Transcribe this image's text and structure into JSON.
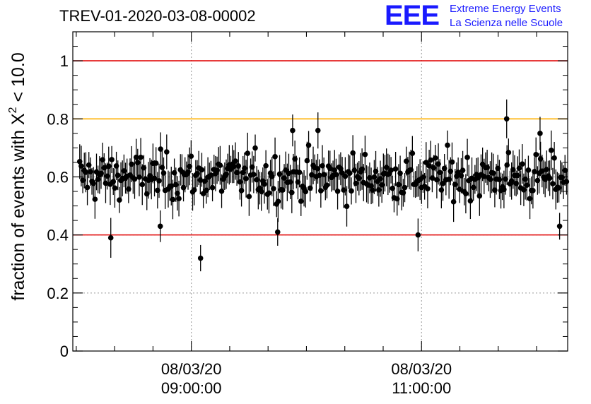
{
  "title": "TREV-01-2020-03-08-00002",
  "logo": {
    "mark": "EEE",
    "line1": "Extreme Energy Events",
    "line2": "La Scienza nelle Scuole"
  },
  "colors": {
    "threshold_low": "#e00000",
    "threshold_high": "#e00000",
    "threshold_mid": "#ffb000",
    "points": "#000000",
    "logo": "#1a1aff"
  },
  "chart_data": {
    "type": "scatter",
    "title": "TREV-01-2020-03-08-00002",
    "ylabel_main": "fraction of events with ",
    "ylabel_chi": "X",
    "ylabel_sup": "2",
    "ylabel_tail": " < 10.0",
    "ylim": [
      0,
      1.1
    ],
    "yticks": [
      0,
      0.2,
      0.4,
      0.6,
      0.8,
      1
    ],
    "ytick_labels": [
      "0",
      "0.2",
      "0.4",
      "0.6",
      "0.8",
      "1"
    ],
    "xlim_hours": [
      7.97,
      12.27
    ],
    "xticks": [
      {
        "value": 9.0,
        "label_date": "08/03/20",
        "label_time": "09:00:00"
      },
      {
        "value": 11.0,
        "label_date": "08/03/20",
        "label_time": "11:00:00"
      }
    ],
    "hlines": [
      {
        "y": 1.0,
        "color": "red"
      },
      {
        "y": 0.8,
        "color": "orange"
      },
      {
        "y": 0.4,
        "color": "red"
      }
    ],
    "grid": "dotted at tick positions",
    "series": [
      {
        "points_count": 320,
        "mean": 0.6,
        "spread": 0.08,
        "typical_error": 0.055,
        "outliers": [
          {
            "x": 8.73,
            "y": 0.43
          },
          {
            "x": 9.08,
            "y": 0.32
          },
          {
            "x": 8.3,
            "y": 0.39
          },
          {
            "x": 9.75,
            "y": 0.41
          },
          {
            "x": 10.97,
            "y": 0.4
          },
          {
            "x": 11.74,
            "y": 0.8
          },
          {
            "x": 12.2,
            "y": 0.43
          },
          {
            "x": 12.03,
            "y": 0.75
          },
          {
            "x": 10.1,
            "y": 0.76
          },
          {
            "x": 9.88,
            "y": 0.76
          }
        ]
      }
    ]
  }
}
